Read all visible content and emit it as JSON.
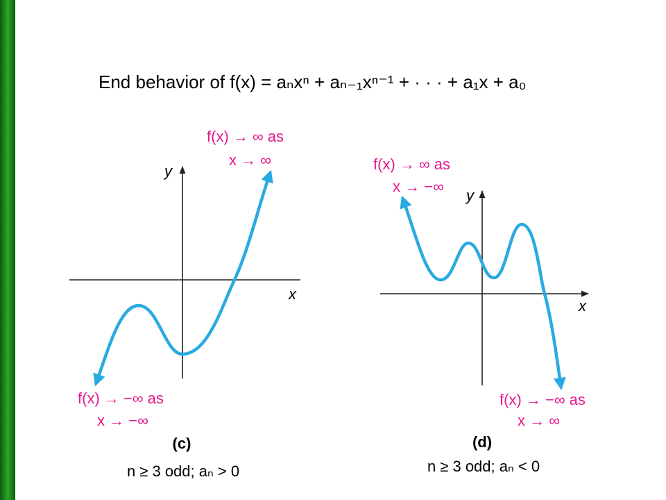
{
  "title": "End behavior of f(x) = aₙxⁿ + aₙ₋₁xⁿ⁻¹ + · · · + a₁x + a₀",
  "panels": [
    {
      "top_label": [
        "f(x) → ∞ as",
        "x → ∞"
      ],
      "bottom_label": [
        "f(x) → −∞ as",
        "x → −∞"
      ],
      "y_axis_label": "y",
      "x_axis_label": "x",
      "label": "(c)",
      "caption": "n ≥ 3 odd; aₙ > 0"
    },
    {
      "top_label": [
        "f(x) → ∞ as",
        "x → −∞"
      ],
      "bottom_label": [
        "f(x) → −∞ as",
        "x → ∞"
      ],
      "y_axis_label": "y",
      "x_axis_label": "x",
      "label": "(d)",
      "caption": "n ≥ 3 odd; aₙ < 0"
    }
  ]
}
